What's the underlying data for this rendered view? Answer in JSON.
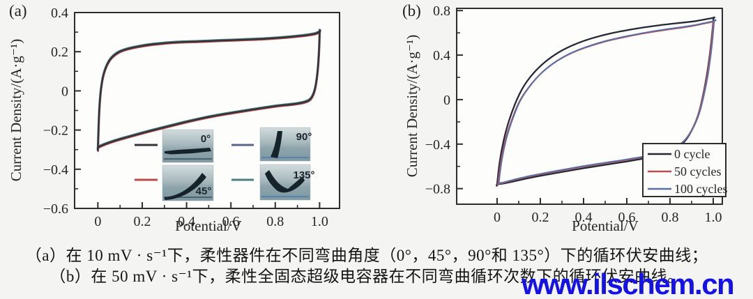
{
  "panels": {
    "a_label": "(a)",
    "b_label": "(b)"
  },
  "caption": {
    "line1": "（a）在 10 mV · s⁻¹下，柔性器件在不同弯曲角度（0°，45°，90°和 135°）下的循环伏安曲线；",
    "line2": "（b）在 50 mV · s⁻¹下，柔性全固态超级电容器在不同弯曲循环次数下的循环伏安曲线。"
  },
  "watermark": {
    "text": "www.ilschem.cn",
    "color": "#1412e8"
  },
  "chart_data": [
    {
      "type": "line",
      "panel": "a",
      "title": "",
      "xlabel": "Potential/V",
      "ylabel": "Current Density/(A·g⁻¹)",
      "xlim": [
        -0.105,
        1.09
      ],
      "ylim": [
        -0.6,
        0.4
      ],
      "grid": false,
      "x_ticks": [
        {
          "v": 0,
          "t": "0"
        },
        {
          "v": 0.2,
          "t": "0.2"
        },
        {
          "v": 0.4,
          "t": "0.4"
        },
        {
          "v": 0.6,
          "t": "0.6"
        },
        {
          "v": 0.8,
          "t": "0.8"
        },
        {
          "v": 1,
          "t": "1.0"
        }
      ],
      "x_minor": [
        0.1,
        0.3,
        0.5,
        0.7,
        0.9
      ],
      "y_ticks": [
        {
          "v": 0.4,
          "t": "0.4"
        },
        {
          "v": 0.2,
          "t": "0.2"
        },
        {
          "v": 0,
          "t": "0"
        },
        {
          "v": -0.2,
          "t": "−0.2"
        },
        {
          "v": -0.4,
          "t": "−0.4"
        },
        {
          "v": -0.6,
          "t": "−0.6"
        }
      ],
      "y_minor": [
        0.3,
        0.1,
        -0.1,
        -0.3,
        -0.5
      ],
      "legend_position": "inset-photos",
      "legend": [
        {
          "label": "0°",
          "color": "#32343a"
        },
        {
          "label": "90°",
          "color": "#5a6591"
        },
        {
          "label": "45°",
          "color": "#bb4a4a"
        },
        {
          "label": "135°",
          "color": "#4f7f81"
        }
      ],
      "series": [
        {
          "name": "90°",
          "color": "#5a6591",
          "dx": 0.8,
          "dy": -0.6,
          "width": 2
        },
        {
          "name": "135°",
          "color": "#4f7f81",
          "dx": -0.5,
          "dy": -1.2,
          "width": 2
        },
        {
          "name": "45°",
          "color": "#bb4a4a",
          "dx": 0.5,
          "dy": 1.2,
          "width": 2
        },
        {
          "name": "0°",
          "color": "#32343a",
          "dx": 0,
          "dy": 0,
          "width": 2.4
        }
      ],
      "loop": [
        [
          0,
          -0.29
        ],
        [
          0,
          -0.29
        ],
        [
          0.006,
          -0.1
        ],
        [
          0.015,
          0.02
        ],
        [
          0.03,
          0.1
        ],
        [
          0.055,
          0.16
        ],
        [
          0.09,
          0.195
        ],
        [
          0.13,
          0.213
        ],
        [
          0.18,
          0.226
        ],
        [
          0.25,
          0.238
        ],
        [
          0.35,
          0.248
        ],
        [
          0.45,
          0.252
        ],
        [
          0.55,
          0.257
        ],
        [
          0.65,
          0.261
        ],
        [
          0.75,
          0.266
        ],
        [
          0.85,
          0.274
        ],
        [
          0.93,
          0.283
        ],
        [
          0.98,
          0.292
        ],
        [
          1,
          0.302
        ],
        [
          1,
          0.302
        ],
        [
          0.997,
          0.2
        ],
        [
          0.99,
          0.09
        ],
        [
          0.978,
          0.005
        ],
        [
          0.96,
          -0.04
        ],
        [
          0.93,
          -0.058
        ],
        [
          0.88,
          -0.068
        ],
        [
          0.8,
          -0.078
        ],
        [
          0.7,
          -0.095
        ],
        [
          0.6,
          -0.113
        ],
        [
          0.5,
          -0.133
        ],
        [
          0.4,
          -0.158
        ],
        [
          0.3,
          -0.186
        ],
        [
          0.21,
          -0.212
        ],
        [
          0.13,
          -0.237
        ],
        [
          0.07,
          -0.257
        ],
        [
          0.03,
          -0.273
        ],
        [
          0.008,
          -0.284
        ]
      ]
    },
    {
      "type": "line",
      "panel": "b",
      "title": "",
      "xlabel": "Potential/V",
      "ylabel": "Current Density/(A·g⁻¹)",
      "xlim": [
        -0.187,
        1.042
      ],
      "ylim": [
        -0.94,
        0.82
      ],
      "grid": false,
      "x_ticks": [
        {
          "v": 0,
          "t": "0"
        },
        {
          "v": 0.2,
          "t": "0.2"
        },
        {
          "v": 0.4,
          "t": "0.4"
        },
        {
          "v": 0.6,
          "t": "0.6"
        },
        {
          "v": 0.8,
          "t": "0.8"
        },
        {
          "v": 1,
          "t": "1.0"
        }
      ],
      "x_minor": [
        0.1,
        0.3,
        0.5,
        0.7,
        0.9
      ],
      "y_ticks": [
        {
          "v": 0.8,
          "t": "0.8"
        },
        {
          "v": 0.4,
          "t": "0.4"
        },
        {
          "v": 0,
          "t": "0"
        },
        {
          "v": -0.4,
          "t": "−0.4"
        },
        {
          "v": -0.8,
          "t": "−0.8"
        }
      ],
      "y_minor": [
        0.6,
        0.2,
        -0.2,
        -0.6
      ],
      "legend_position": "inside-bottom-right",
      "legend": [
        {
          "label": "0 cycle",
          "color": "#232833"
        },
        {
          "label": "50 cycles",
          "color": "#c04a50"
        },
        {
          "label": "100 cycles",
          "color": "#5a6fa4"
        }
      ],
      "series": [
        {
          "name": "0 cycle",
          "color": "#232833",
          "loop": "outer",
          "dx": 0,
          "dy": 0,
          "width": 2.3
        },
        {
          "name": "50 cycles",
          "color": "#c04a50",
          "loop": "inner",
          "dx": 0,
          "dy": 0,
          "width": 2
        },
        {
          "name": "100 cycles",
          "color": "#5a6fa4",
          "loop": "inner",
          "dx": 1.2,
          "dy": -1,
          "width": 2
        }
      ],
      "loops": {
        "outer": [
          [
            0,
            -0.76
          ],
          [
            0,
            -0.76
          ],
          [
            0.012,
            -0.56
          ],
          [
            0.03,
            -0.37
          ],
          [
            0.055,
            -0.19
          ],
          [
            0.085,
            -0.03
          ],
          [
            0.12,
            0.11
          ],
          [
            0.165,
            0.23
          ],
          [
            0.22,
            0.335
          ],
          [
            0.285,
            0.425
          ],
          [
            0.36,
            0.497
          ],
          [
            0.44,
            0.552
          ],
          [
            0.53,
            0.597
          ],
          [
            0.63,
            0.634
          ],
          [
            0.73,
            0.663
          ],
          [
            0.83,
            0.686
          ],
          [
            0.92,
            0.706
          ],
          [
            1,
            0.735
          ],
          [
            1,
            0.735
          ],
          [
            1,
            0.7
          ],
          [
            0.995,
            0.6
          ],
          [
            0.985,
            0.42
          ],
          [
            0.972,
            0.24
          ],
          [
            0.955,
            0.06
          ],
          [
            0.933,
            -0.12
          ],
          [
            0.905,
            -0.26
          ],
          [
            0.87,
            -0.37
          ],
          [
            0.825,
            -0.442
          ],
          [
            0.77,
            -0.49
          ],
          [
            0.7,
            -0.522
          ],
          [
            0.6,
            -0.556
          ],
          [
            0.5,
            -0.586
          ],
          [
            0.4,
            -0.617
          ],
          [
            0.3,
            -0.65
          ],
          [
            0.2,
            -0.685
          ],
          [
            0.12,
            -0.716
          ],
          [
            0.06,
            -0.742
          ],
          [
            0.02,
            -0.757
          ]
        ],
        "inner": [
          [
            0.004,
            -0.755
          ],
          [
            0.004,
            -0.755
          ],
          [
            0.018,
            -0.55
          ],
          [
            0.04,
            -0.35
          ],
          [
            0.07,
            -0.17
          ],
          [
            0.105,
            -0.01
          ],
          [
            0.15,
            0.12
          ],
          [
            0.2,
            0.23
          ],
          [
            0.26,
            0.325
          ],
          [
            0.33,
            0.405
          ],
          [
            0.41,
            0.468
          ],
          [
            0.5,
            0.522
          ],
          [
            0.6,
            0.566
          ],
          [
            0.7,
            0.602
          ],
          [
            0.8,
            0.632
          ],
          [
            0.9,
            0.66
          ],
          [
            1,
            0.7
          ],
          [
            1,
            0.7
          ],
          [
            0.995,
            0.58
          ],
          [
            0.985,
            0.4
          ],
          [
            0.972,
            0.22
          ],
          [
            0.955,
            0.05
          ],
          [
            0.933,
            -0.12
          ],
          [
            0.905,
            -0.255
          ],
          [
            0.87,
            -0.36
          ],
          [
            0.825,
            -0.43
          ],
          [
            0.77,
            -0.475
          ],
          [
            0.7,
            -0.508
          ],
          [
            0.6,
            -0.542
          ],
          [
            0.5,
            -0.572
          ],
          [
            0.4,
            -0.602
          ],
          [
            0.3,
            -0.636
          ],
          [
            0.2,
            -0.672
          ],
          [
            0.12,
            -0.704
          ],
          [
            0.06,
            -0.732
          ],
          [
            0.02,
            -0.752
          ]
        ]
      }
    }
  ]
}
